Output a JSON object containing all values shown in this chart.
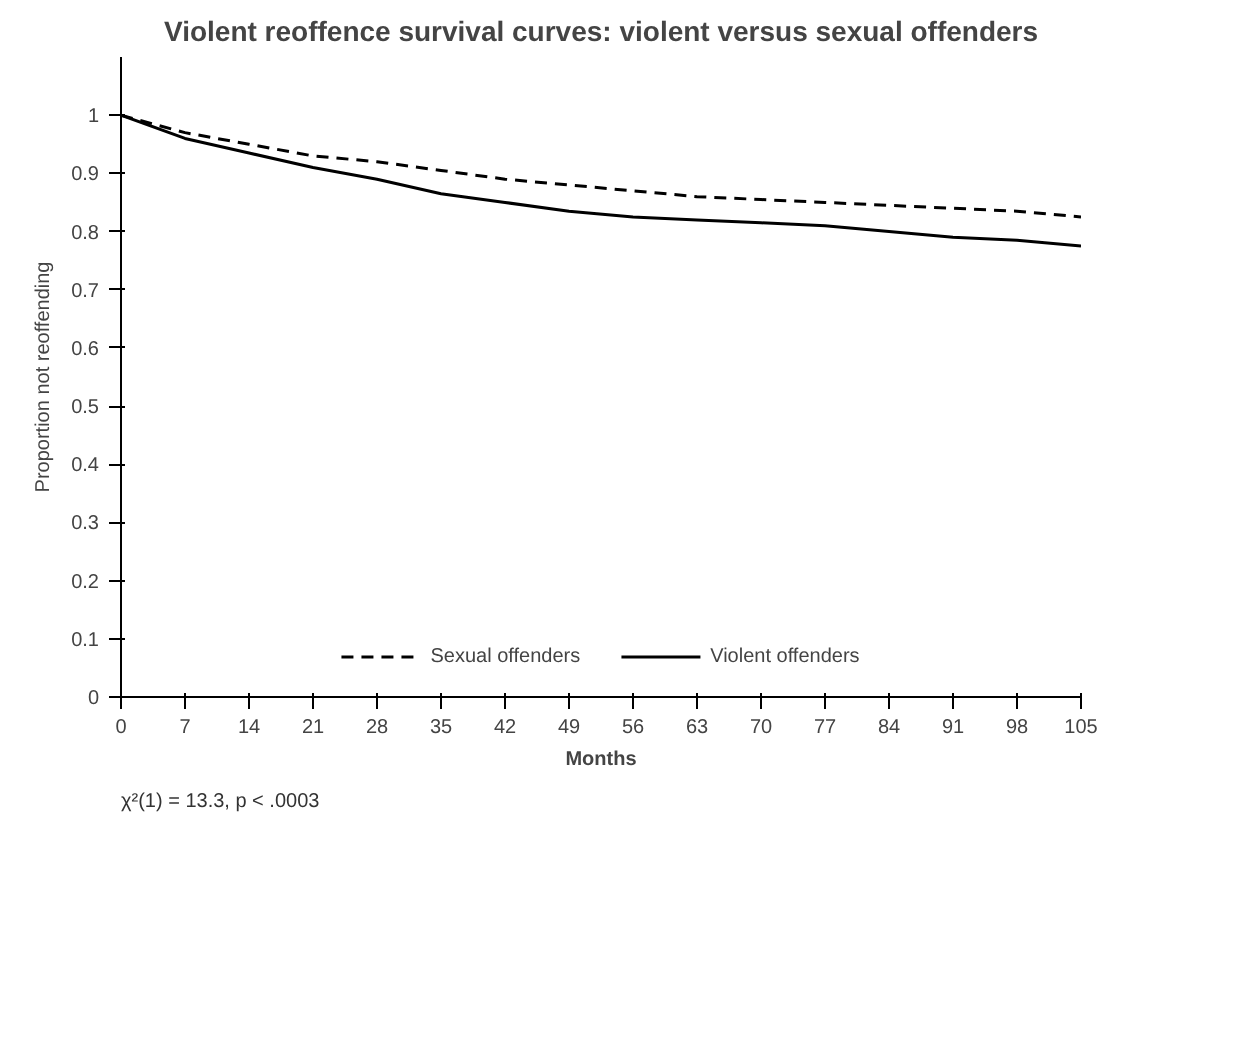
{
  "chart_data": {
    "type": "line",
    "title": "Violent reoffence survival curves: violent versus sexual offenders",
    "xlabel": "Months",
    "ylabel": "Proportion not reoffending",
    "x": [
      0,
      7,
      14,
      21,
      28,
      35,
      42,
      49,
      56,
      63,
      70,
      77,
      84,
      91,
      98,
      105
    ],
    "series": [
      {
        "name": "Sexual offenders",
        "color": "#000000",
        "line_style": "dashed",
        "values": [
          1.0,
          0.97,
          0.95,
          0.93,
          0.92,
          0.905,
          0.89,
          0.88,
          0.87,
          0.86,
          0.855,
          0.85,
          0.845,
          0.84,
          0.835,
          0.825
        ]
      },
      {
        "name": "Violent offenders",
        "color": "#000000",
        "line_style": "solid",
        "values": [
          1.0,
          0.96,
          0.935,
          0.91,
          0.89,
          0.865,
          0.85,
          0.835,
          0.825,
          0.82,
          0.815,
          0.81,
          0.8,
          0.79,
          0.785,
          0.775
        ]
      }
    ],
    "xlim": [
      0,
      105
    ],
    "xticks": [
      0,
      7,
      14,
      21,
      28,
      35,
      42,
      49,
      56,
      63,
      70,
      77,
      84,
      91,
      98,
      105
    ],
    "ylim": [
      0,
      1.1
    ],
    "yticks": [
      0,
      0.1,
      0.2,
      0.3,
      0.4,
      0.5,
      0.6,
      0.7,
      0.8,
      0.9,
      1
    ],
    "annotations": [
      "χ²(1) = 13.3, p < .0003"
    ],
    "grid": false,
    "legend": "bottom",
    "marker": "none"
  }
}
